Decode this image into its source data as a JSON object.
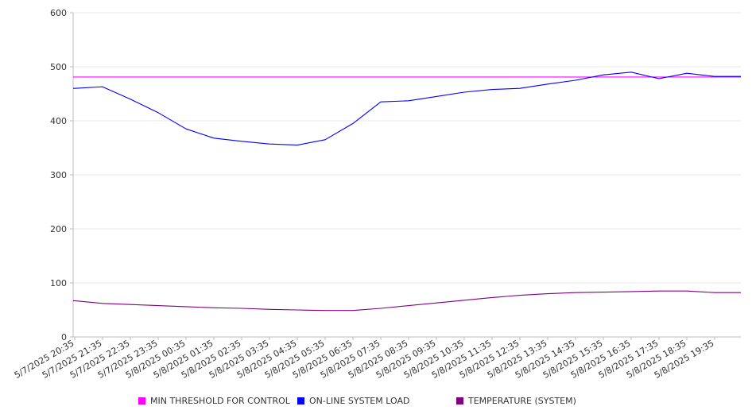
{
  "chart_data": {
    "type": "line",
    "title": "",
    "xlabel": "",
    "ylabel": "",
    "ylim": [
      0,
      600
    ],
    "y_ticks": [
      "0",
      "100",
      "200",
      "300",
      "400",
      "500",
      "600"
    ],
    "grid": "horizontal",
    "legend_position": "bottom",
    "x": [
      "5/7/2025 20:35",
      "5/7/2025 21:35",
      "5/7/2025 22:35",
      "5/7/2025 23:35",
      "5/8/2025 00:35",
      "5/8/2025 01:35",
      "5/8/2025 02:35",
      "5/8/2025 03:35",
      "5/8/2025 04:35",
      "5/8/2025 05:35",
      "5/8/2025 06:35",
      "5/8/2025 07:35",
      "5/8/2025 08:35",
      "5/8/2025 09:35",
      "5/8/2025 10:35",
      "5/8/2025 11:35",
      "5/8/2025 12:35",
      "5/8/2025 13:35",
      "5/8/2025 14:35",
      "5/8/2025 15:35",
      "5/8/2025 16:35",
      "5/8/2025 17:35",
      "5/8/2025 18:35",
      "5/8/2025 19:35"
    ],
    "series": [
      {
        "name": "MIN THRESHOLD FOR CONTROL",
        "color": "#ff00ff",
        "values": [
          481,
          481,
          481,
          481,
          481,
          481,
          481,
          481,
          481,
          481,
          481,
          481,
          481,
          481,
          481,
          481,
          481,
          481,
          481,
          481,
          481,
          481,
          481,
          481
        ]
      },
      {
        "name": "ON-LINE SYSTEM LOAD",
        "color": "#0000ff",
        "values": [
          460,
          463,
          440,
          415,
          385,
          368,
          362,
          357,
          355,
          365,
          395,
          435,
          437,
          445,
          453,
          458,
          460,
          468,
          475,
          485,
          490,
          478,
          488,
          482
        ]
      },
      {
        "name": "TEMPERATURE (SYSTEM)",
        "color": "#800080",
        "values": [
          67,
          62,
          60,
          58,
          56,
          54,
          53,
          51,
          50,
          49,
          49,
          53,
          58,
          63,
          68,
          73,
          77,
          80,
          82,
          83,
          84,
          85,
          85,
          82
        ]
      }
    ]
  }
}
